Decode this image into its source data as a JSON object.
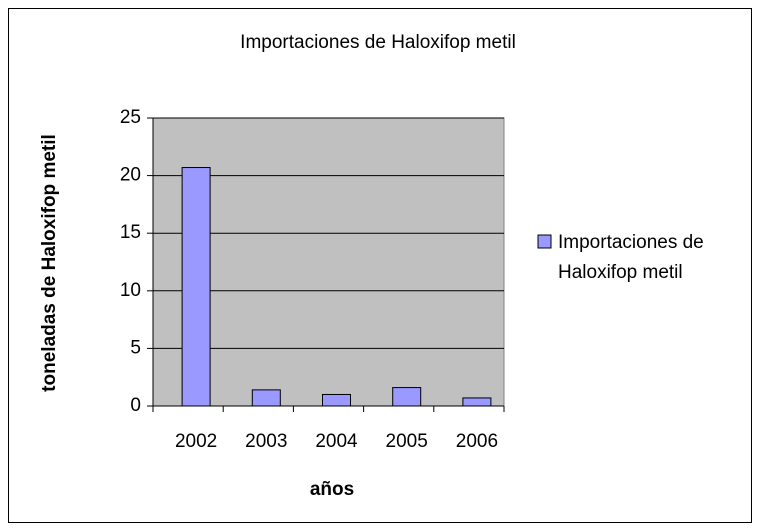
{
  "chart_data": {
    "type": "bar",
    "title": "Importaciones de Haloxifop metil",
    "x_label": "años",
    "y_label": "toneladas de Haloxifop metil",
    "categories": [
      "2002",
      "2003",
      "2004",
      "2005",
      "2006"
    ],
    "series": [
      {
        "name": "Importaciones de Haloxifop metil",
        "color": "#9999ff",
        "values": [
          20.7,
          1.4,
          1.0,
          1.6,
          0.7
        ]
      }
    ],
    "ylim": [
      0,
      25
    ],
    "yticks": [
      0,
      5,
      10,
      15,
      20,
      25
    ],
    "grid": true,
    "legend": "right"
  }
}
